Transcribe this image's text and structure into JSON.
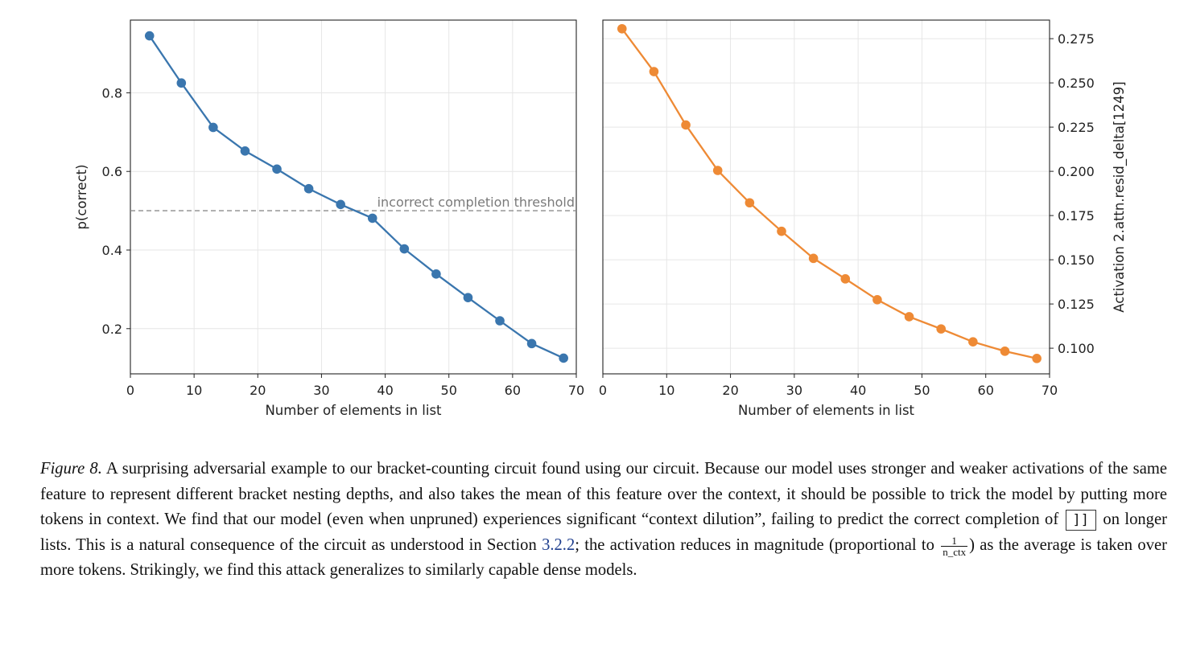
{
  "chart_data": [
    {
      "type": "line",
      "xlabel": "Number of elements in list",
      "ylabel": "p(correct)",
      "xlim": [
        0,
        70
      ],
      "ylim": [
        0.085,
        0.985
      ],
      "xticks": [
        0,
        10,
        20,
        30,
        40,
        50,
        60,
        70
      ],
      "xtick_labels": [
        "0",
        "10",
        "20",
        "30",
        "40",
        "50",
        "60",
        "70"
      ],
      "yticks": [
        0.2,
        0.4,
        0.6,
        0.8
      ],
      "ytick_labels": [
        "0.2",
        "0.4",
        "0.6",
        "0.8"
      ],
      "y_axis_side": "left",
      "grid": true,
      "color": "#3a76ae",
      "series": [
        {
          "name": "p(correct)",
          "x": [
            3,
            8,
            13,
            18,
            23,
            28,
            33,
            38,
            43,
            48,
            53,
            58,
            63,
            68
          ],
          "values": [
            0.945,
            0.825,
            0.712,
            0.652,
            0.606,
            0.556,
            0.516,
            0.481,
            0.403,
            0.339,
            0.279,
            0.22,
            0.162,
            0.125
          ]
        }
      ],
      "reference_line": {
        "y": 0.5,
        "style": "dashed",
        "color": "#8c8c8c",
        "label": "incorrect completion threshold"
      }
    },
    {
      "type": "line",
      "xlabel": "Number of elements in list",
      "ylabel": "Activation 2.attn.resid_delta[1249]",
      "xlim": [
        0,
        70
      ],
      "ylim": [
        0.0855,
        0.2855
      ],
      "xticks": [
        0,
        10,
        20,
        30,
        40,
        50,
        60,
        70
      ],
      "xtick_labels": [
        "0",
        "10",
        "20",
        "30",
        "40",
        "50",
        "60",
        "70"
      ],
      "yticks": [
        0.1,
        0.125,
        0.15,
        0.175,
        0.2,
        0.225,
        0.25,
        0.275
      ],
      "ytick_labels": [
        "0.100",
        "0.125",
        "0.150",
        "0.175",
        "0.200",
        "0.225",
        "0.250",
        "0.275"
      ],
      "y_axis_side": "right",
      "grid": true,
      "color": "#ee8a35",
      "series": [
        {
          "name": "Activation 2.attn.resid_delta[1249]",
          "x": [
            3,
            8,
            13,
            18,
            23,
            28,
            33,
            38,
            43,
            48,
            53,
            58,
            63,
            68
          ],
          "values": [
            0.2806,
            0.2564,
            0.2262,
            0.2005,
            0.1822,
            0.1661,
            0.1508,
            0.1392,
            0.1274,
            0.1178,
            0.1109,
            0.1036,
            0.0983,
            0.0942
          ]
        }
      ]
    }
  ],
  "caption": {
    "label": "Figure 8.",
    "text1": " A surprising adversarial example to our bracket-counting circuit found using our circuit. Because our model uses stronger and weaker activations of the same feature to represent different bracket nesting depths, and also takes the mean of this feature over the context, it should be possible to trick the model by putting more tokens in context. We find that our model (even when unpruned) experiences significant “context dilution”, failing to predict the correct completion of ",
    "code": "]]",
    "text2": " on longer lists. This is a natural consequence of the circuit as understood in Section ",
    "section_ref": "3.2.2",
    "text3": "; the activation reduces in magnitude (proportional to ",
    "frac_num": "1",
    "frac_den": "n_ctx",
    "text4": ") as the average is taken over more tokens. Strikingly, we find this attack generalizes to similarly capable dense models."
  }
}
